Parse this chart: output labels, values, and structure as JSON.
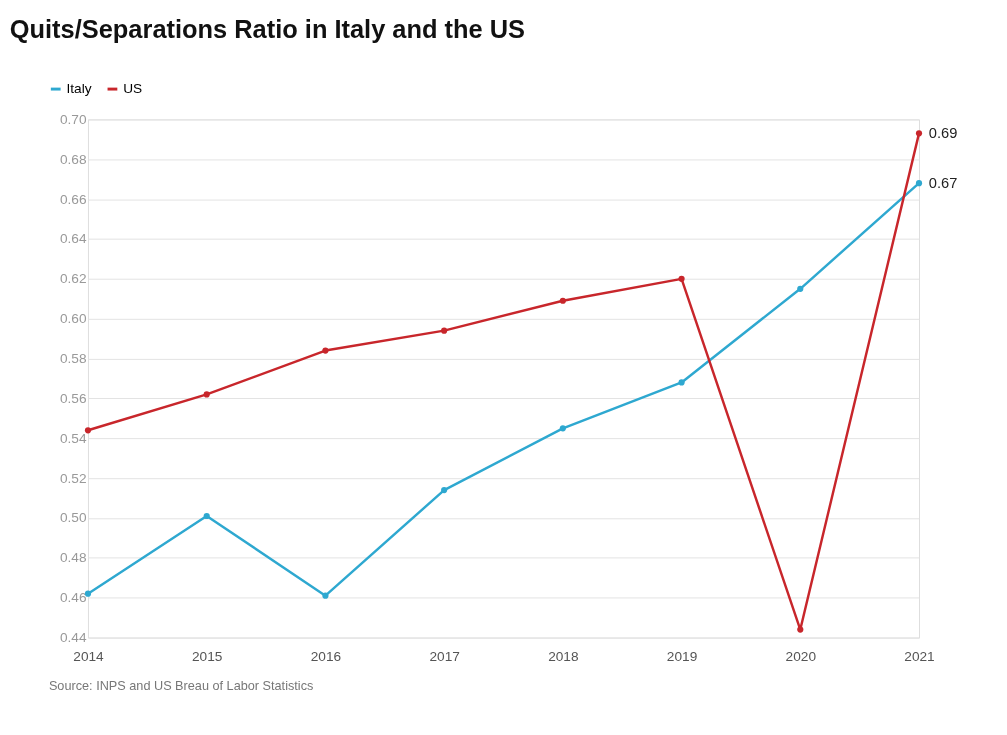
{
  "chart_data": {
    "type": "line",
    "title": "Quits/Separations Ratio in Italy and the US",
    "categories": [
      "2014",
      "2015",
      "2016",
      "2017",
      "2018",
      "2019",
      "2020",
      "2021"
    ],
    "series": [
      {
        "name": "Italy",
        "color": "#2ea8d0",
        "values": [
          0.462,
          0.501,
          0.461,
          0.514,
          0.545,
          0.568,
          0.615,
          0.668
        ],
        "value_labels": [
          null,
          null,
          null,
          null,
          null,
          null,
          null,
          "0.67"
        ]
      },
      {
        "name": "US",
        "color": "#c8262b",
        "values": [
          0.544,
          0.562,
          0.584,
          0.594,
          0.609,
          0.62,
          0.444,
          0.693
        ],
        "value_labels": [
          null,
          null,
          null,
          null,
          null,
          null,
          null,
          "0.69"
        ]
      }
    ],
    "ylim": [
      0.44,
      0.7
    ],
    "yticks": [
      {
        "value": 0.44,
        "label": "0.44"
      },
      {
        "value": 0.46,
        "label": "0.46"
      },
      {
        "value": 0.48,
        "label": "0.48"
      },
      {
        "value": 0.5,
        "label": "0.50"
      },
      {
        "value": 0.52,
        "label": "0.52"
      },
      {
        "value": 0.54,
        "label": "0.54"
      },
      {
        "value": 0.56,
        "label": "0.56"
      },
      {
        "value": 0.58,
        "label": "0.58"
      },
      {
        "value": 0.6,
        "label": "0.60"
      },
      {
        "value": 0.62,
        "label": "0.62"
      },
      {
        "value": 0.64,
        "label": "0.64"
      },
      {
        "value": 0.66,
        "label": "0.66"
      },
      {
        "value": 0.68,
        "label": "0.68"
      },
      {
        "value": 0.7,
        "label": "0.70"
      }
    ],
    "grid": "y",
    "legend": "top left",
    "marker": "circle",
    "line_style": "solid",
    "annotations": [
      "Source: INPS and US Breau of Labor Statistics"
    ]
  }
}
